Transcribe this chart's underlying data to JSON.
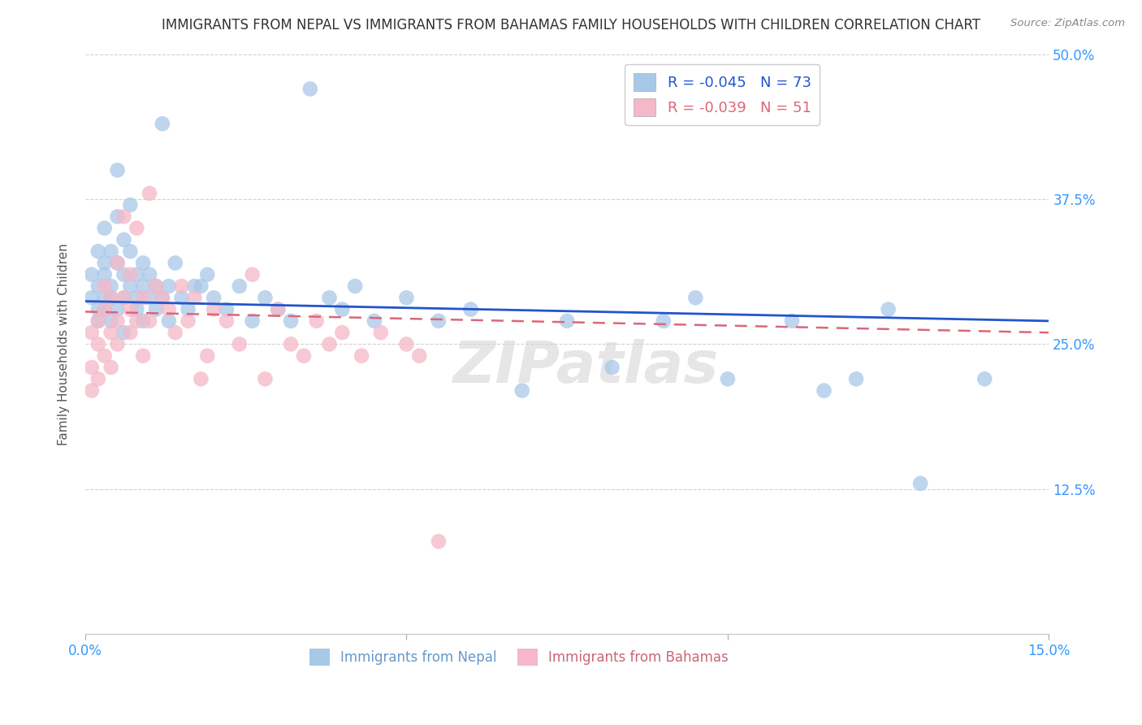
{
  "title": "IMMIGRANTS FROM NEPAL VS IMMIGRANTS FROM BAHAMAS FAMILY HOUSEHOLDS WITH CHILDREN CORRELATION CHART",
  "source": "Source: ZipAtlas.com",
  "ylabel": "Family Households with Children",
  "x_min": 0.0,
  "x_max": 0.15,
  "y_min": 0.0,
  "y_max": 0.5,
  "grid_color": "#cccccc",
  "nepal_color": "#a8c8e8",
  "bahamas_color": "#f4b8c8",
  "nepal_line_color": "#2255cc",
  "bahamas_line_color": "#dd6677",
  "nepal_R": "-0.045",
  "nepal_N": "73",
  "bahamas_R": "-0.039",
  "bahamas_N": "51",
  "legend_label_nepal": "Immigrants from Nepal",
  "legend_label_bahamas": "Immigrants from Bahamas",
  "watermark": "ZIPatlas",
  "nepal_x": [
    0.001,
    0.001,
    0.002,
    0.002,
    0.002,
    0.002,
    0.003,
    0.003,
    0.003,
    0.003,
    0.003,
    0.004,
    0.004,
    0.004,
    0.004,
    0.005,
    0.005,
    0.005,
    0.005,
    0.006,
    0.006,
    0.006,
    0.006,
    0.007,
    0.007,
    0.007,
    0.008,
    0.008,
    0.008,
    0.009,
    0.009,
    0.009,
    0.01,
    0.01,
    0.011,
    0.011,
    0.012,
    0.012,
    0.013,
    0.013,
    0.014,
    0.015,
    0.016,
    0.017,
    0.018,
    0.019,
    0.02,
    0.022,
    0.024,
    0.026,
    0.028,
    0.03,
    0.032,
    0.035,
    0.038,
    0.04,
    0.042,
    0.045,
    0.05,
    0.055,
    0.06,
    0.068,
    0.075,
    0.082,
    0.09,
    0.095,
    0.1,
    0.11,
    0.115,
    0.12,
    0.125,
    0.13,
    0.14
  ],
  "nepal_y": [
    0.29,
    0.31,
    0.28,
    0.3,
    0.33,
    0.27,
    0.29,
    0.32,
    0.28,
    0.31,
    0.35,
    0.27,
    0.3,
    0.33,
    0.29,
    0.4,
    0.28,
    0.32,
    0.36,
    0.29,
    0.31,
    0.34,
    0.26,
    0.3,
    0.33,
    0.37,
    0.28,
    0.31,
    0.29,
    0.32,
    0.27,
    0.3,
    0.29,
    0.31,
    0.28,
    0.3,
    0.44,
    0.29,
    0.3,
    0.27,
    0.32,
    0.29,
    0.28,
    0.3,
    0.3,
    0.31,
    0.29,
    0.28,
    0.3,
    0.27,
    0.29,
    0.28,
    0.27,
    0.47,
    0.29,
    0.28,
    0.3,
    0.27,
    0.29,
    0.27,
    0.28,
    0.21,
    0.27,
    0.23,
    0.27,
    0.29,
    0.22,
    0.27,
    0.21,
    0.22,
    0.28,
    0.13,
    0.22
  ],
  "bahamas_x": [
    0.001,
    0.001,
    0.001,
    0.002,
    0.002,
    0.002,
    0.003,
    0.003,
    0.003,
    0.004,
    0.004,
    0.004,
    0.005,
    0.005,
    0.005,
    0.006,
    0.006,
    0.007,
    0.007,
    0.007,
    0.008,
    0.008,
    0.009,
    0.009,
    0.01,
    0.01,
    0.011,
    0.012,
    0.013,
    0.014,
    0.015,
    0.016,
    0.017,
    0.018,
    0.019,
    0.02,
    0.022,
    0.024,
    0.026,
    0.028,
    0.03,
    0.032,
    0.034,
    0.036,
    0.038,
    0.04,
    0.043,
    0.046,
    0.05,
    0.052,
    0.055
  ],
  "bahamas_y": [
    0.21,
    0.23,
    0.26,
    0.22,
    0.25,
    0.27,
    0.24,
    0.28,
    0.3,
    0.26,
    0.29,
    0.23,
    0.32,
    0.27,
    0.25,
    0.36,
    0.29,
    0.28,
    0.31,
    0.26,
    0.35,
    0.27,
    0.29,
    0.24,
    0.38,
    0.27,
    0.3,
    0.29,
    0.28,
    0.26,
    0.3,
    0.27,
    0.29,
    0.22,
    0.24,
    0.28,
    0.27,
    0.25,
    0.31,
    0.22,
    0.28,
    0.25,
    0.24,
    0.27,
    0.25,
    0.26,
    0.24,
    0.26,
    0.25,
    0.24,
    0.08
  ]
}
